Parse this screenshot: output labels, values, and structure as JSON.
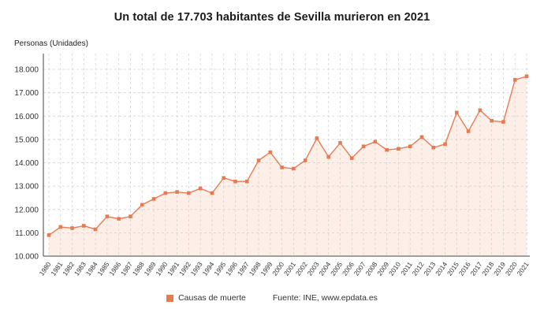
{
  "title": "Un total de 17.703 habitantes de Sevilla murieron en 2021",
  "y_axis_title": "Personas (Unidades)",
  "legend": {
    "label": "Causas de muerte",
    "color": "#e87a52"
  },
  "source": "Fuente: INE, www.epdata.es",
  "colors": {
    "line": "#e87a52",
    "marker": "#e87a52",
    "area_fill": "#fdeee7",
    "grid": "#cfcfcf",
    "axis": "#444444",
    "tick_text": "#333333"
  },
  "chart_data": {
    "type": "line",
    "title": "Un total de 17.703 habitantes de Sevilla murieron en 2021",
    "xlabel": "",
    "ylabel": "Personas (Unidades)",
    "ylim": [
      10000,
      18000
    ],
    "ytick_step": 1000,
    "ytick_labels": [
      "10.000",
      "11.000",
      "12.000",
      "13.000",
      "14.000",
      "15.000",
      "16.000",
      "17.000",
      "18.000"
    ],
    "grid": true,
    "grid_style": "dashed",
    "legend_position": "bottom",
    "x": [
      1980,
      1981,
      1982,
      1983,
      1984,
      1985,
      1986,
      1987,
      1988,
      1989,
      1990,
      1991,
      1992,
      1993,
      1994,
      1995,
      1996,
      1997,
      1998,
      1999,
      2000,
      2001,
      2002,
      2003,
      2004,
      2005,
      2006,
      2007,
      2008,
      2009,
      2010,
      2011,
      2012,
      2013,
      2014,
      2015,
      2016,
      2017,
      2018,
      2019,
      2020,
      2021
    ],
    "series": [
      {
        "name": "Causas de muerte",
        "values": [
          10900,
          11250,
          11200,
          11300,
          11150,
          11700,
          11600,
          11700,
          12200,
          12450,
          12700,
          12750,
          12700,
          12900,
          12700,
          13350,
          13200,
          13200,
          14100,
          14450,
          13800,
          13750,
          14100,
          15050,
          14250,
          14850,
          14200,
          14700,
          14900,
          14550,
          14600,
          14700,
          15100,
          14650,
          14800,
          16150,
          15350,
          16250,
          15800,
          15750,
          17550,
          17703
        ]
      }
    ]
  }
}
